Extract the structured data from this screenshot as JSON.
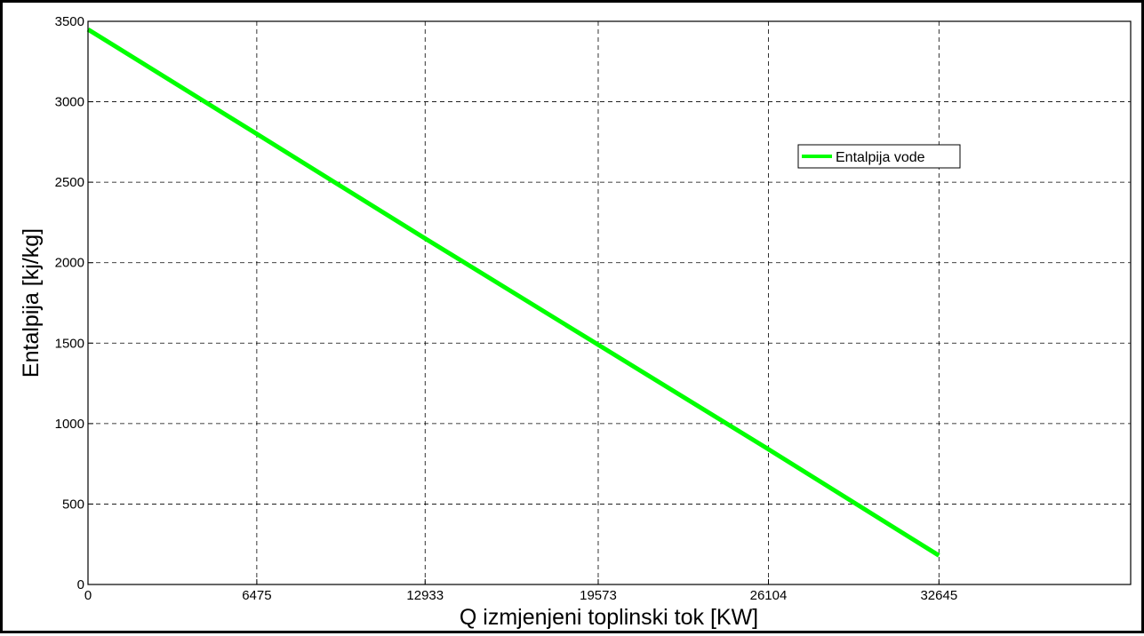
{
  "chart_data": {
    "type": "line",
    "xlabel": "Q izmjenjeni toplinski tok [KW]",
    "ylabel": "Entalpija [kj/kg]",
    "xlim": [
      0,
      40000
    ],
    "ylim": [
      0,
      3500
    ],
    "x_ticks": [
      0,
      6475,
      12933,
      19573,
      26104,
      32645
    ],
    "y_ticks": [
      0,
      500,
      1000,
      1500,
      2000,
      2500,
      3000,
      3500
    ],
    "grid": true,
    "legend_position": "top-right",
    "series": [
      {
        "name": "Entalpija vode",
        "color": "#00ff00",
        "x": [
          0,
          6475,
          12933,
          19573,
          26104,
          32645
        ],
        "y": [
          3450,
          2800,
          2150,
          1490,
          840,
          180
        ]
      }
    ]
  }
}
